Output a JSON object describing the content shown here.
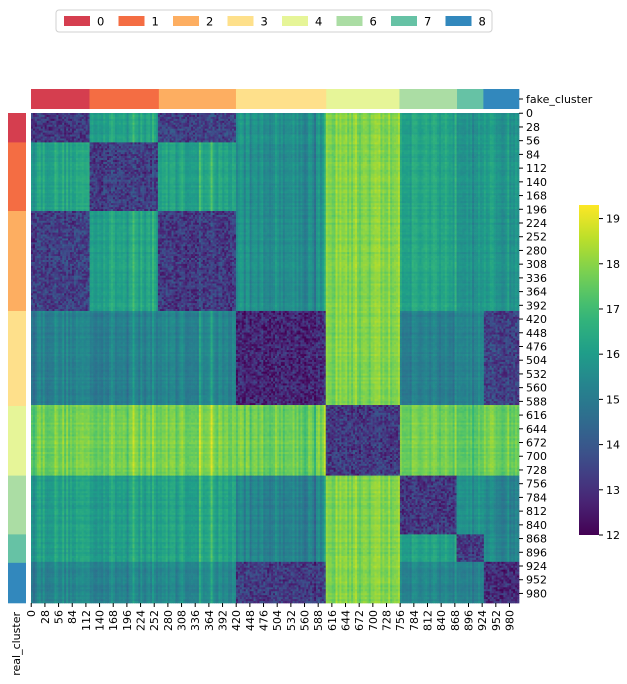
{
  "chart_data": {
    "type": "heatmap",
    "title": "",
    "xlabel": "",
    "ylabel": "real_cluster",
    "col_color_label": "fake_cluster",
    "n": 1000,
    "tick_labels": [
      "0",
      "28",
      "56",
      "84",
      "112",
      "140",
      "168",
      "196",
      "224",
      "252",
      "280",
      "308",
      "336",
      "364",
      "392",
      "420",
      "448",
      "476",
      "504",
      "532",
      "560",
      "588",
      "616",
      "644",
      "672",
      "700",
      "728",
      "756",
      "784",
      "812",
      "840",
      "868",
      "896",
      "924",
      "952",
      "980"
    ],
    "tick_values": [
      0,
      28,
      56,
      84,
      112,
      140,
      168,
      196,
      224,
      252,
      280,
      308,
      336,
      364,
      392,
      420,
      448,
      476,
      504,
      532,
      560,
      588,
      616,
      644,
      672,
      700,
      728,
      756,
      784,
      812,
      840,
      868,
      896,
      924,
      952,
      980
    ],
    "colorbar": {
      "min": 12,
      "max": 19.3,
      "ticks": [
        12,
        13,
        14,
        15,
        16,
        17,
        18,
        19
      ],
      "tick_labels": [
        "12",
        "13",
        "14",
        "15",
        "16",
        "17",
        "18",
        "19"
      ],
      "colormap": "viridis"
    },
    "legend": {
      "placement": "top",
      "entries": [
        {
          "label": "0",
          "color": "#d53e4f"
        },
        {
          "label": "1",
          "color": "#f46d43"
        },
        {
          "label": "2",
          "color": "#fdae61"
        },
        {
          "label": "3",
          "color": "#fee08b"
        },
        {
          "label": "4",
          "color": "#e6f598"
        },
        {
          "label": "6",
          "color": "#abdda4"
        },
        {
          "label": "7",
          "color": "#66c2a5"
        },
        {
          "label": "8",
          "color": "#3288bd"
        }
      ]
    },
    "fake_clusters": [
      {
        "label": "0",
        "start": 0,
        "end": 120
      },
      {
        "label": "1",
        "start": 120,
        "end": 262
      },
      {
        "label": "2",
        "start": 262,
        "end": 420
      },
      {
        "label": "3",
        "start": 420,
        "end": 605
      },
      {
        "label": "4",
        "start": 605,
        "end": 755
      },
      {
        "label": "6",
        "start": 755,
        "end": 873
      },
      {
        "label": "7",
        "start": 873,
        "end": 927
      },
      {
        "label": "8",
        "start": 927,
        "end": 1000
      }
    ],
    "real_clusters": [
      {
        "label": "0",
        "start": 0,
        "end": 60
      },
      {
        "label": "1",
        "start": 60,
        "end": 200
      },
      {
        "label": "2",
        "start": 200,
        "end": 404
      },
      {
        "label": "3",
        "start": 404,
        "end": 598
      },
      {
        "label": "4",
        "start": 598,
        "end": 740
      },
      {
        "label": "6",
        "start": 740,
        "end": 860
      },
      {
        "label": "7",
        "start": 860,
        "end": 918
      },
      {
        "label": "8",
        "start": 918,
        "end": 1000
      }
    ],
    "block_values": {
      "row_order": [
        "0",
        "1",
        "2",
        "3",
        "4",
        "6",
        "7",
        "8"
      ],
      "col_order": [
        "0",
        "1",
        "2",
        "3",
        "4",
        "6",
        "7",
        "8"
      ],
      "values": [
        [
          13.2,
          16.2,
          13.4,
          15.7,
          17.9,
          16.3,
          16.0,
          15.8
        ],
        [
          16.3,
          13.3,
          16.2,
          15.6,
          17.9,
          16.3,
          16.0,
          15.9
        ],
        [
          13.4,
          16.2,
          13.2,
          15.6,
          17.9,
          16.3,
          16.0,
          15.8
        ],
        [
          15.3,
          15.2,
          15.3,
          12.8,
          17.9,
          15.2,
          15.6,
          13.4
        ],
        [
          17.8,
          17.8,
          17.8,
          17.7,
          13.2,
          17.8,
          17.7,
          17.7
        ],
        [
          16.2,
          16.1,
          16.2,
          15.3,
          17.9,
          13.2,
          16.0,
          15.3
        ],
        [
          16.2,
          16.1,
          16.2,
          15.3,
          17.9,
          16.2,
          13.4,
          15.4
        ],
        [
          15.4,
          15.3,
          15.4,
          13.3,
          17.9,
          15.4,
          15.5,
          12.9
        ]
      ]
    }
  }
}
